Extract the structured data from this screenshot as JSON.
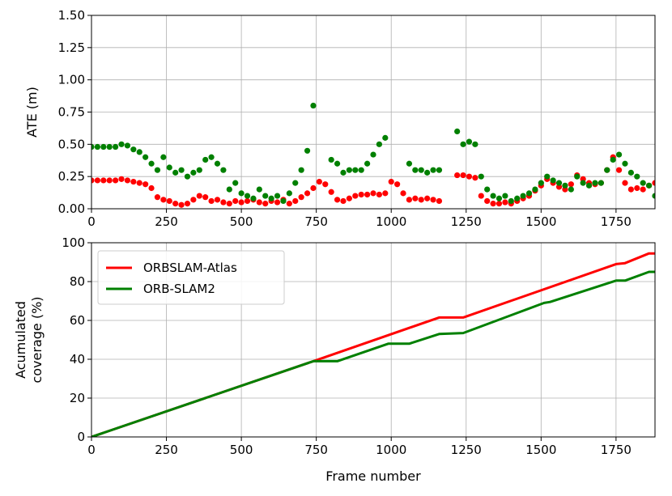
{
  "chart_data": [
    {
      "type": "scatter",
      "title": "",
      "xlabel": "",
      "ylabel": "ATE (m)",
      "xlim": [
        0,
        1880
      ],
      "ylim": [
        0,
        1.5
      ],
      "xticks": [
        0,
        250,
        500,
        750,
        1000,
        1250,
        1500,
        1750
      ],
      "xtick_labels": [
        "0",
        "250",
        "500",
        "750",
        "1000",
        "1250",
        "1500",
        "1750"
      ],
      "yticks": [
        0,
        0.25,
        0.5,
        0.75,
        1.0,
        1.25,
        1.5
      ],
      "ytick_labels": [
        "0.00",
        "0.25",
        "0.50",
        "0.75",
        "1.00",
        "1.25",
        "1.50"
      ],
      "grid": true,
      "series": [
        {
          "color": "#ff0000",
          "x": [
            0,
            20,
            40,
            60,
            80,
            100,
            120,
            140,
            160,
            180,
            200,
            220,
            240,
            260,
            280,
            300,
            320,
            340,
            360,
            380,
            400,
            420,
            440,
            460,
            480,
            500,
            520,
            540,
            560,
            580,
            600,
            620,
            640,
            660,
            680,
            700,
            720,
            740,
            760,
            780,
            800,
            820,
            840,
            860,
            880,
            900,
            920,
            940,
            960,
            980,
            1000,
            1020,
            1040,
            1060,
            1080,
            1100,
            1120,
            1140,
            1160,
            1180,
            1200,
            1220,
            1240,
            1260,
            1280,
            1300,
            1320,
            1340,
            1360,
            1380,
            1400,
            1420,
            1440,
            1460,
            1480,
            1500,
            1520,
            1540,
            1560,
            1580,
            1600,
            1620,
            1640,
            1660,
            1680,
            1700,
            1720,
            1740,
            1760,
            1780,
            1800,
            1820,
            1840,
            1860,
            1880
          ],
          "y": [
            0.22,
            0.22,
            0.22,
            0.22,
            0.22,
            0.23,
            0.22,
            0.21,
            0.2,
            0.19,
            0.16,
            0.09,
            0.07,
            0.06,
            0.04,
            0.03,
            0.04,
            0.07,
            0.1,
            0.09,
            0.06,
            0.07,
            0.05,
            0.04,
            0.06,
            0.05,
            0.06,
            0.07,
            0.05,
            0.04,
            0.06,
            0.05,
            0.07,
            0.04,
            0.06,
            0.09,
            0.12,
            0.16,
            0.21,
            0.19,
            0.13,
            0.07,
            0.06,
            0.08,
            0.1,
            0.11,
            0.11,
            0.12,
            0.11,
            0.12,
            0.21,
            0.19,
            0.12,
            0.07,
            0.08,
            0.07,
            0.08,
            0.07,
            0.06,
            null,
            null,
            0.26,
            0.26,
            0.25,
            0.24,
            0.1,
            0.06,
            0.04,
            0.04,
            0.05,
            0.04,
            0.06,
            0.08,
            0.1,
            0.14,
            0.18,
            0.23,
            0.2,
            0.17,
            0.15,
            0.19,
            0.26,
            0.23,
            0.2,
            0.19,
            0.2,
            0.3,
            0.4,
            0.3,
            0.2,
            0.15,
            0.16,
            0.15,
            0.18,
            0.2
          ]
        },
        {
          "color": "#008000",
          "x": [
            0,
            20,
            40,
            60,
            80,
            100,
            120,
            140,
            160,
            180,
            200,
            220,
            240,
            260,
            280,
            300,
            320,
            340,
            360,
            380,
            400,
            420,
            440,
            460,
            480,
            500,
            520,
            540,
            560,
            580,
            600,
            620,
            640,
            660,
            680,
            700,
            720,
            740,
            760,
            780,
            800,
            820,
            840,
            860,
            880,
            900,
            920,
            940,
            960,
            980,
            1000,
            1020,
            1040,
            1060,
            1080,
            1100,
            1120,
            1140,
            1160,
            1180,
            1200,
            1220,
            1240,
            1260,
            1280,
            1300,
            1320,
            1340,
            1360,
            1380,
            1400,
            1420,
            1440,
            1460,
            1480,
            1500,
            1520,
            1540,
            1560,
            1580,
            1600,
            1620,
            1640,
            1660,
            1680,
            1700,
            1720,
            1740,
            1760,
            1780,
            1800,
            1820,
            1840,
            1860,
            1880
          ],
          "y": [
            0.48,
            0.48,
            0.48,
            0.48,
            0.48,
            0.5,
            0.49,
            0.46,
            0.44,
            0.4,
            0.35,
            0.3,
            0.4,
            0.32,
            0.28,
            0.3,
            0.25,
            0.28,
            0.3,
            0.38,
            0.4,
            0.35,
            0.3,
            0.15,
            0.2,
            0.12,
            0.1,
            0.08,
            0.15,
            0.1,
            0.08,
            0.1,
            0.06,
            0.12,
            0.2,
            0.3,
            0.45,
            0.8,
            null,
            null,
            0.38,
            0.35,
            0.28,
            0.3,
            0.3,
            0.3,
            0.35,
            0.42,
            0.5,
            0.55,
            null,
            null,
            null,
            0.35,
            0.3,
            0.3,
            0.28,
            0.3,
            0.3,
            null,
            null,
            0.6,
            0.5,
            0.52,
            0.5,
            0.25,
            0.15,
            0.1,
            0.08,
            0.1,
            0.06,
            0.08,
            0.1,
            0.12,
            0.15,
            0.2,
            0.25,
            0.22,
            0.2,
            0.18,
            0.15,
            0.25,
            0.2,
            0.18,
            0.2,
            0.2,
            0.3,
            0.38,
            0.42,
            0.35,
            0.28,
            0.25,
            0.2,
            0.18,
            0.1
          ]
        }
      ]
    },
    {
      "type": "line",
      "title": "",
      "xlabel": "Frame number",
      "ylabel": "Acumulated coverage (%)",
      "xlim": [
        0,
        1880
      ],
      "ylim": [
        0,
        100
      ],
      "xticks": [
        0,
        250,
        500,
        750,
        1000,
        1250,
        1500,
        1750
      ],
      "xtick_labels": [
        "0",
        "250",
        "500",
        "750",
        "1000",
        "1250",
        "1500",
        "1750"
      ],
      "yticks": [
        0,
        20,
        40,
        60,
        80,
        100
      ],
      "ytick_labels": [
        "0",
        "20",
        "40",
        "60",
        "80",
        "100"
      ],
      "grid": true,
      "legend": "top-left",
      "series": [
        {
          "name": "ORBSLAM-Atlas",
          "color": "#ff0000",
          "x": [
            0,
            740,
            1160,
            1240,
            1750,
            1780,
            1860,
            1880
          ],
          "y": [
            0,
            39,
            61.5,
            61.5,
            89,
            89.5,
            94.5,
            94.5
          ]
        },
        {
          "name": "ORB-SLAM2",
          "color": "#008000",
          "x": [
            0,
            740,
            820,
            990,
            1060,
            1160,
            1240,
            1510,
            1530,
            1750,
            1780,
            1860,
            1880
          ],
          "y": [
            0,
            39,
            39,
            48,
            48,
            53,
            53.5,
            69,
            69.5,
            80.5,
            80.5,
            85,
            85
          ]
        }
      ]
    }
  ]
}
